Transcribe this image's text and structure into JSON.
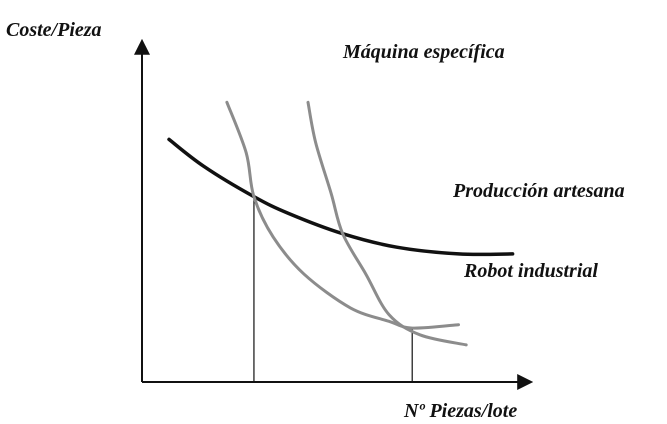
{
  "chart_data": {
    "type": "line",
    "ylabel": "Coste/Pieza",
    "xlabel": "Nº Piezas/lote",
    "grid": false,
    "legend": "none",
    "series": [
      {
        "name": "Producción artesana",
        "color": "#111111",
        "points": [
          [
            0.07,
            0.72
          ],
          [
            0.16,
            0.64
          ],
          [
            0.29,
            0.55
          ],
          [
            0.38,
            0.5
          ],
          [
            0.52,
            0.44
          ],
          [
            0.66,
            0.4
          ],
          [
            0.82,
            0.38
          ],
          [
            0.96,
            0.38
          ]
        ]
      },
      {
        "name": "Robot industrial",
        "color": "#8c8c8c",
        "points": [
          [
            0.22,
            0.83
          ],
          [
            0.27,
            0.68
          ],
          [
            0.29,
            0.55
          ],
          [
            0.34,
            0.43
          ],
          [
            0.42,
            0.32
          ],
          [
            0.54,
            0.22
          ],
          [
            0.64,
            0.18
          ],
          [
            0.7,
            0.16
          ],
          [
            0.82,
            0.17
          ]
        ]
      },
      {
        "name": "Máquina específica",
        "color": "#8c8c8c",
        "points": [
          [
            0.43,
            0.83
          ],
          [
            0.45,
            0.71
          ],
          [
            0.49,
            0.56
          ],
          [
            0.52,
            0.44
          ],
          [
            0.58,
            0.32
          ],
          [
            0.64,
            0.2
          ],
          [
            0.72,
            0.14
          ],
          [
            0.84,
            0.11
          ]
        ]
      }
    ],
    "guides": [
      {
        "x": 0.29,
        "y": 0.55
      },
      {
        "x": 0.7,
        "y": 0.16
      }
    ]
  }
}
